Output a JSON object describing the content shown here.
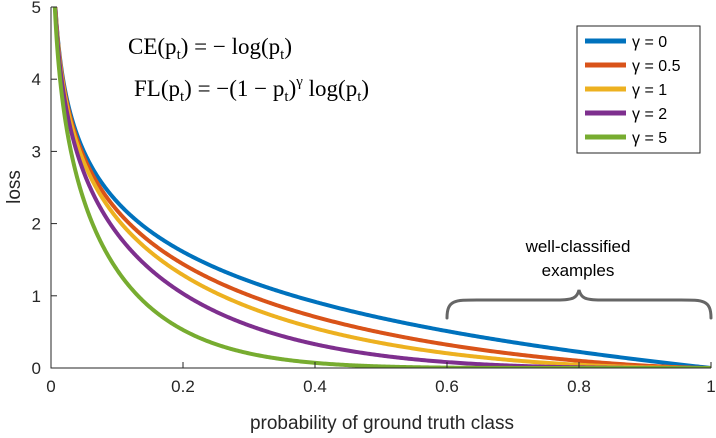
{
  "chart_data": {
    "type": "line",
    "xlabel": "probability of ground truth class",
    "ylabel": "loss",
    "xlim": [
      0,
      1
    ],
    "ylim": [
      0,
      5
    ],
    "x_ticks": [
      0,
      0.2,
      0.4,
      0.6,
      0.8,
      1
    ],
    "x_tick_labels": [
      "0",
      "0.2",
      "0.4",
      "0.6",
      "0.8",
      "1"
    ],
    "y_ticks": [
      0,
      1,
      2,
      3,
      4,
      5
    ],
    "y_tick_labels": [
      "0",
      "1",
      "2",
      "3",
      "4",
      "5"
    ],
    "grid": false,
    "legend_position": "top-right",
    "series": [
      {
        "name": "γ = 0",
        "gamma": 0,
        "color": "#0072BD"
      },
      {
        "name": "γ = 0.5",
        "gamma": 0.5,
        "color": "#D95319"
      },
      {
        "name": "γ = 1",
        "gamma": 1,
        "color": "#EDB120"
      },
      {
        "name": "γ = 2",
        "gamma": 2,
        "color": "#7E2F8E"
      },
      {
        "name": "γ = 5",
        "gamma": 5,
        "color": "#77AC30"
      }
    ],
    "equations": [
      {
        "lhs": "CE(p",
        "sub": "t",
        "rhs": ") = − log(p",
        "sub2": "t",
        "end": ")"
      },
      {
        "lhs": "FL(p",
        "sub": "t",
        "rhs": ") = −(1 − p",
        "sub2": "t",
        "sup": "γ",
        "rhs2": " log(p",
        "sub3": "t",
        "end": ")"
      }
    ],
    "annotation": {
      "line1": "well-classified",
      "line2": "examples",
      "x_range": [
        0.6,
        1.0
      ],
      "bracket_color": "#666666"
    }
  }
}
